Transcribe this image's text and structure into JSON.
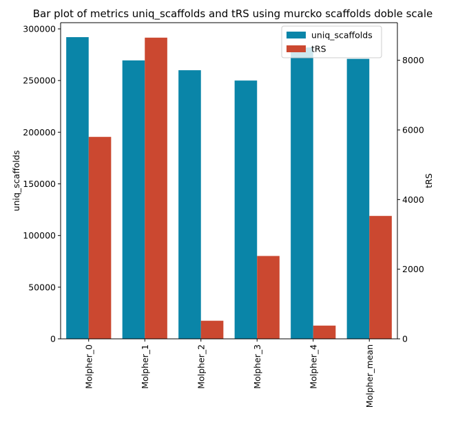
{
  "chart_data": {
    "type": "bar",
    "title": "Bar plot of metrics uniq_scaffolds and tRS using murcko scaffolds doble scale",
    "xlabel": "",
    "categories": [
      "Molpher_0",
      "Molpher_1",
      "Molpher_2",
      "Molpher_3",
      "Molpher_4",
      "Molpher_mean"
    ],
    "series": [
      {
        "name": "uniq_scaffolds",
        "axis": "left",
        "color": "#0a85a8",
        "values": [
          292000,
          269500,
          260000,
          250000,
          282000,
          271000
        ]
      },
      {
        "name": "tRS",
        "axis": "right",
        "color": "#cb4830",
        "values": [
          5800,
          8650,
          520,
          2380,
          380,
          3530
        ]
      }
    ],
    "left_axis": {
      "label": "uniq_scaffolds",
      "lim": [
        0,
        306000
      ],
      "ticks": [
        0,
        50000,
        100000,
        150000,
        200000,
        250000,
        300000
      ]
    },
    "right_axis": {
      "label": "tRS",
      "lim": [
        0,
        9080
      ],
      "ticks": [
        0,
        2000,
        4000,
        6000,
        8000
      ]
    },
    "legend_position": "top-right",
    "grid": false
  }
}
